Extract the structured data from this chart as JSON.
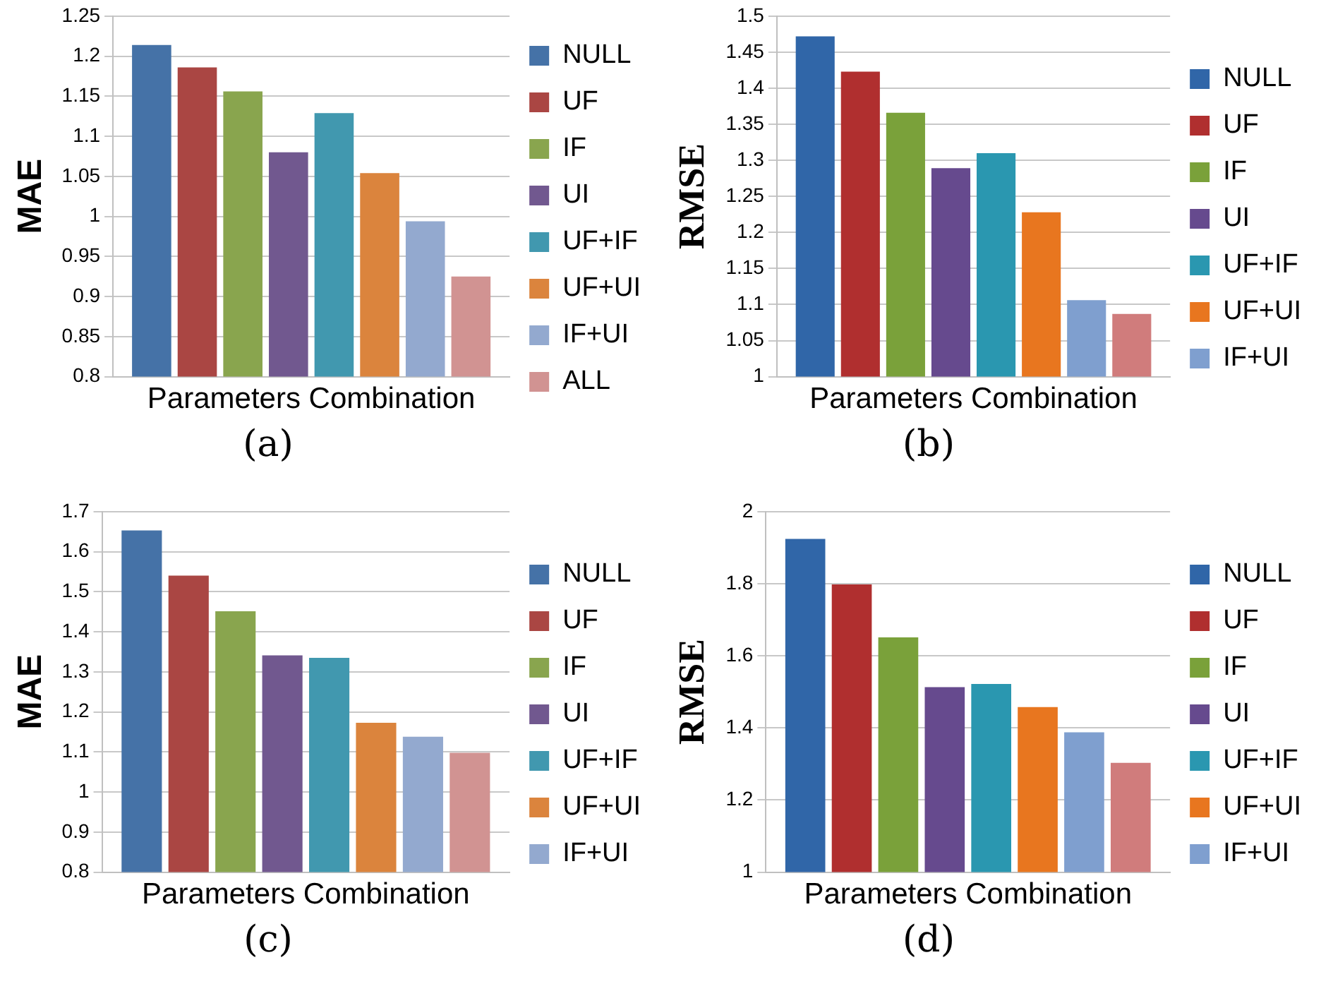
{
  "chart_data": [
    {
      "type": "bar",
      "categories": [
        null
      ],
      "ylabel": "MAE",
      "xlabel": "Parameters Combination",
      "ylim": [
        0.8,
        1.25
      ],
      "yticks": [
        0.8,
        0.85,
        0.9,
        0.95,
        1,
        1.05,
        1.1,
        1.15,
        1.2,
        1.25
      ],
      "grid": "y",
      "legend": "right",
      "tick_labels": "y",
      "annotations": [
        "(a)"
      ],
      "series": [
        {
          "name": "NULL",
          "color": "#4572a7",
          "values": [
            1.214
          ]
        },
        {
          "name": "UF",
          "color": "#aa4643",
          "values": [
            1.186
          ]
        },
        {
          "name": "IF",
          "color": "#89a54e",
          "values": [
            1.156
          ]
        },
        {
          "name": "UI",
          "color": "#71588f",
          "values": [
            1.08
          ]
        },
        {
          "name": "UF+IF",
          "color": "#4198af",
          "values": [
            1.129
          ]
        },
        {
          "name": "UF+UI",
          "color": "#db843d",
          "values": [
            1.054
          ]
        },
        {
          "name": "IF+UI",
          "color": "#93a9cf",
          "values": [
            0.994
          ]
        },
        {
          "name": "ALL",
          "color": "#d19392",
          "values": [
            0.925
          ]
        }
      ]
    },
    {
      "type": "bar",
      "categories": [
        null
      ],
      "ylabel": "RMSE",
      "xlabel": "Parameters Combination",
      "ylim": [
        1,
        1.5
      ],
      "yticks": [
        1,
        1.05,
        1.1,
        1.15,
        1.2,
        1.25,
        1.3,
        1.35,
        1.4,
        1.45,
        1.5
      ],
      "grid": "y",
      "legend": "right",
      "tick_labels": "y",
      "annotations": [
        "(b)"
      ],
      "series": [
        {
          "name": "NULL",
          "color": "#3066a8",
          "values": [
            1.472
          ]
        },
        {
          "name": "UF",
          "color": "#b02f2f",
          "values": [
            1.423
          ]
        },
        {
          "name": "IF",
          "color": "#7aa13a",
          "values": [
            1.366
          ]
        },
        {
          "name": "UI",
          "color": "#664a8e",
          "values": [
            1.289
          ]
        },
        {
          "name": "UF+IF",
          "color": "#2a97b0",
          "values": [
            1.31
          ]
        },
        {
          "name": "UF+UI",
          "color": "#e8761f",
          "values": [
            1.228
          ]
        },
        {
          "name": "IF+UI",
          "color": "#7f9fcf",
          "values": [
            1.106
          ]
        },
        {
          "color": "#d07c7c",
          "values": [
            1.087
          ]
        }
      ]
    },
    {
      "type": "bar",
      "categories": [
        null
      ],
      "ylabel": "MAE",
      "xlabel": "Parameters Combination",
      "ylim": [
        0.8,
        1.7
      ],
      "yticks": [
        0.8,
        0.9,
        1,
        1.1,
        1.2,
        1.3,
        1.4,
        1.5,
        1.6,
        1.7
      ],
      "grid": "y",
      "legend": "right",
      "tick_labels": "y",
      "annotations": [
        "(c)"
      ],
      "series": [
        {
          "name": "NULL",
          "color": "#4572a7",
          "values": [
            1.653
          ]
        },
        {
          "name": "UF",
          "color": "#aa4643",
          "values": [
            1.54
          ]
        },
        {
          "name": "IF",
          "color": "#89a54e",
          "values": [
            1.451
          ]
        },
        {
          "name": "UI",
          "color": "#71588f",
          "values": [
            1.341
          ]
        },
        {
          "name": "UF+IF",
          "color": "#4198af",
          "values": [
            1.335
          ]
        },
        {
          "name": "UF+UI",
          "color": "#db843d",
          "values": [
            1.173
          ]
        },
        {
          "name": "IF+UI",
          "color": "#93a9cf",
          "values": [
            1.138
          ]
        },
        {
          "color": "#d19392",
          "values": [
            1.098
          ]
        }
      ]
    },
    {
      "type": "bar",
      "categories": [
        null
      ],
      "ylabel": "RMSE",
      "xlabel": "Parameters Combination",
      "ylim": [
        1,
        2
      ],
      "yticks": [
        1,
        1.2,
        1.4,
        1.6,
        1.8,
        2
      ],
      "grid": "y",
      "legend": "right",
      "tick_labels": "y",
      "annotations": [
        "(d)"
      ],
      "series": [
        {
          "name": "NULL",
          "color": "#3066a8",
          "values": [
            1.924
          ]
        },
        {
          "name": "UF",
          "color": "#b02f2f",
          "values": [
            1.798
          ]
        },
        {
          "name": "IF",
          "color": "#7aa13a",
          "values": [
            1.651
          ]
        },
        {
          "name": "UI",
          "color": "#664a8e",
          "values": [
            1.513
          ]
        },
        {
          "name": "UF+IF",
          "color": "#2a97b0",
          "values": [
            1.522
          ]
        },
        {
          "name": "UF+UI",
          "color": "#e8761f",
          "values": [
            1.458
          ]
        },
        {
          "name": "IF+UI",
          "color": "#7f9fcf",
          "values": [
            1.388
          ]
        },
        {
          "color": "#d07c7c",
          "values": [
            1.303
          ]
        }
      ]
    }
  ]
}
